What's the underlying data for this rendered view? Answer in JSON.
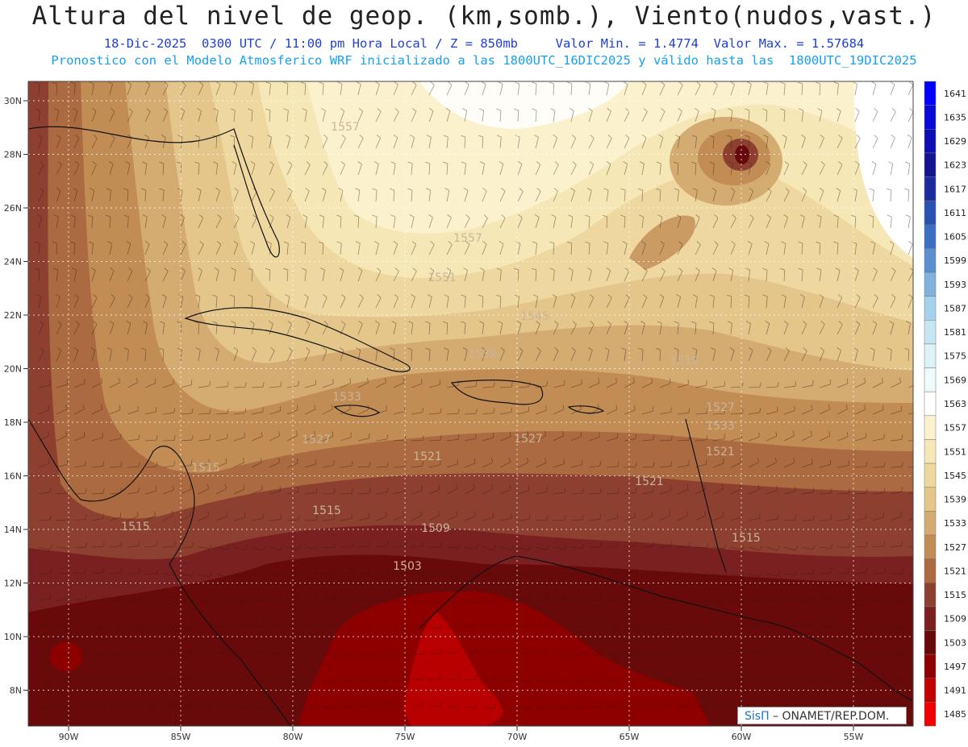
{
  "header": {
    "title": "Altura del nivel de geop. (km,somb.), Viento(nudos,vast.)",
    "subtitle": "18-Dic-2025  0300 UTC / 11:00 pm Hora Local / Z = 850mb     Valor Min. = 1.4774  Valor Max. = 1.57684",
    "model_line": "Pronostico con el Modelo Atmosferico WRF inicializado a las 1800UTC_16DIC2025 y válido hasta las  1800UTC_19DIC2025"
  },
  "map": {
    "lat_labels": [
      "30N",
      "28N",
      "26N",
      "24N",
      "22N",
      "20N",
      "18N",
      "16N",
      "14N",
      "12N",
      "10N",
      "8N"
    ],
    "lon_labels": [
      "90W",
      "85W",
      "80W",
      "75W",
      "70W",
      "65W",
      "60W",
      "55W"
    ],
    "contour_labels": [
      "1557",
      "1557",
      "1551",
      "1545",
      "1539",
      "1539",
      "1533",
      "1527",
      "1527",
      "1521",
      "1521",
      "1521",
      "1515",
      "1515",
      "1515",
      "1515",
      "1509",
      "1503",
      "1527",
      "1533"
    ]
  },
  "legend": {
    "values": [
      "1641",
      "1635",
      "1629",
      "1623",
      "1617",
      "1611",
      "1605",
      "1599",
      "1593",
      "1587",
      "1581",
      "1575",
      "1569",
      "1563",
      "1557",
      "1551",
      "1545",
      "1539",
      "1533",
      "1527",
      "1521",
      "1515",
      "1509",
      "1503",
      "1497",
      "1491",
      "1485"
    ],
    "colors": [
      "#0000ff",
      "#0a0ad8",
      "#0e0eb5",
      "#141490",
      "#1c2a9a",
      "#2a50b2",
      "#3a6fc4",
      "#5a8fd0",
      "#7fb3de",
      "#a5d2ea",
      "#c6e7f2",
      "#ddf3f8",
      "#eefafc",
      "#ffffff",
      "#fbf2cd",
      "#f6e7b6",
      "#efd8a0",
      "#e4c58a",
      "#d4ab70",
      "#c28c55",
      "#ac6a40",
      "#8d4030",
      "#7a2020",
      "#680a0a",
      "#8e0000",
      "#c10000",
      "#f00000"
    ]
  },
  "credit": {
    "brand": "SisΠ",
    "text": " – ONAMET/REP.DOM."
  }
}
